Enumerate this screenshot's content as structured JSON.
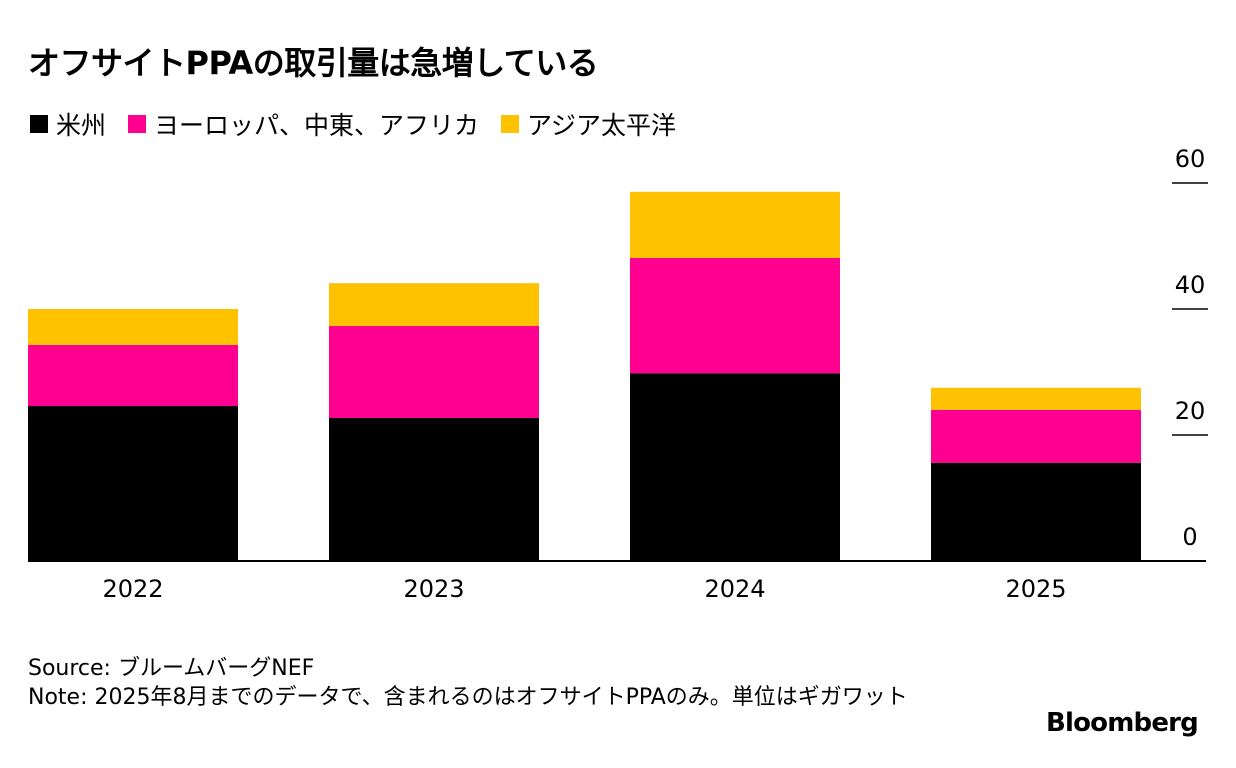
{
  "title": "オフサイトPPAの取引量は急増している",
  "legend": [
    {
      "label": "米州",
      "color": "#000000"
    },
    {
      "label": "ヨーロッパ、中東、アフリカ",
      "color": "#ff0090"
    },
    {
      "label": "アジア太平洋",
      "color": "#ffc200"
    }
  ],
  "chart_data": {
    "type": "bar",
    "stacked": true,
    "title": "オフサイトPPAの取引量は急増している",
    "categories": [
      "2022",
      "2023",
      "2024",
      "2025"
    ],
    "series": [
      {
        "name": "米州",
        "color": "#000000",
        "values": [
          24.6,
          22.7,
          29.8,
          15.6
        ]
      },
      {
        "name": "ヨーロッパ、中東、アフリカ",
        "color": "#ff0090",
        "values": [
          9.7,
          14.6,
          18.3,
          8.4
        ]
      },
      {
        "name": "アジア太平洋",
        "color": "#ffc200",
        "values": [
          5.7,
          6.8,
          10.5,
          3.5
        ]
      }
    ],
    "ylim": [
      0,
      60
    ],
    "yticks": [
      0,
      20,
      40,
      60
    ],
    "yaxis_side": "right",
    "legend_position": "top-left",
    "xlabel": "",
    "ylabel": ""
  },
  "source": "Source: ブルームバーグNEF",
  "note": "Note: 2025年8月までのデータで、含まれるのはオフサイトPPAのみ。単位はギガワット",
  "logo": "Bloomberg"
}
